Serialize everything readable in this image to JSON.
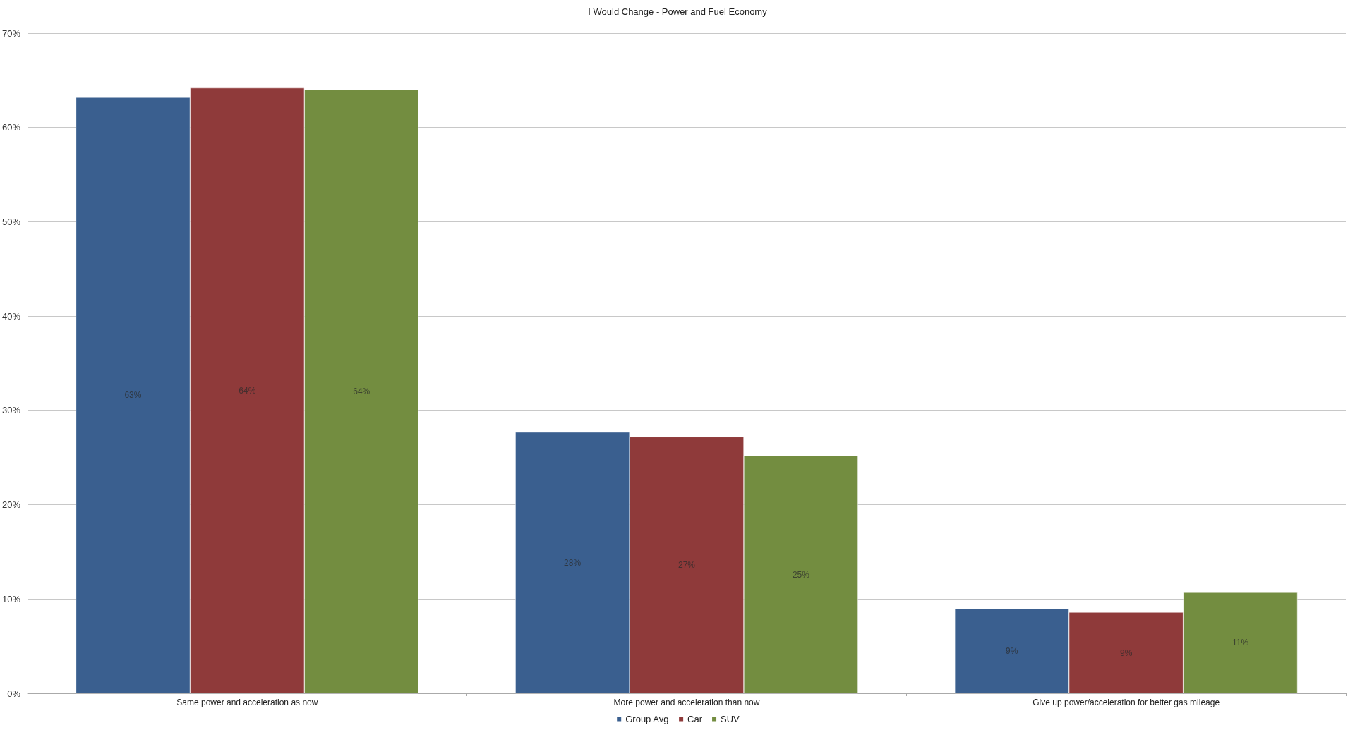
{
  "chart_data": {
    "type": "bar",
    "title": "I Would Change - Power and Fuel Economy",
    "categories": [
      "Same power and acceleration as now",
      "More power and acceleration than now",
      "Give up power/acceleration for better gas mileage"
    ],
    "series": [
      {
        "name": "Group Avg",
        "color": "#3a5f8f",
        "values": [
          63.2,
          27.7,
          9.0
        ],
        "value_labels": [
          "63%",
          "28%",
          "9%"
        ]
      },
      {
        "name": "Car",
        "color": "#8f3a3a",
        "values": [
          64.2,
          27.2,
          8.6
        ],
        "value_labels": [
          "64%",
          "27%",
          "9%"
        ]
      },
      {
        "name": "SUV",
        "color": "#738d40",
        "values": [
          64.0,
          25.2,
          10.7
        ],
        "value_labels": [
          "64%",
          "25%",
          "11%"
        ]
      }
    ],
    "ylim": [
      0,
      70
    ],
    "yticks": [
      {
        "value": 0,
        "label": "0%"
      },
      {
        "value": 10,
        "label": "10%"
      },
      {
        "value": 20,
        "label": "20%"
      },
      {
        "value": 30,
        "label": "30%"
      },
      {
        "value": 40,
        "label": "40%"
      },
      {
        "value": 50,
        "label": "50%"
      },
      {
        "value": 60,
        "label": "60%"
      },
      {
        "value": 70,
        "label": "70%"
      }
    ],
    "grid": "y",
    "legend": "bottom"
  }
}
